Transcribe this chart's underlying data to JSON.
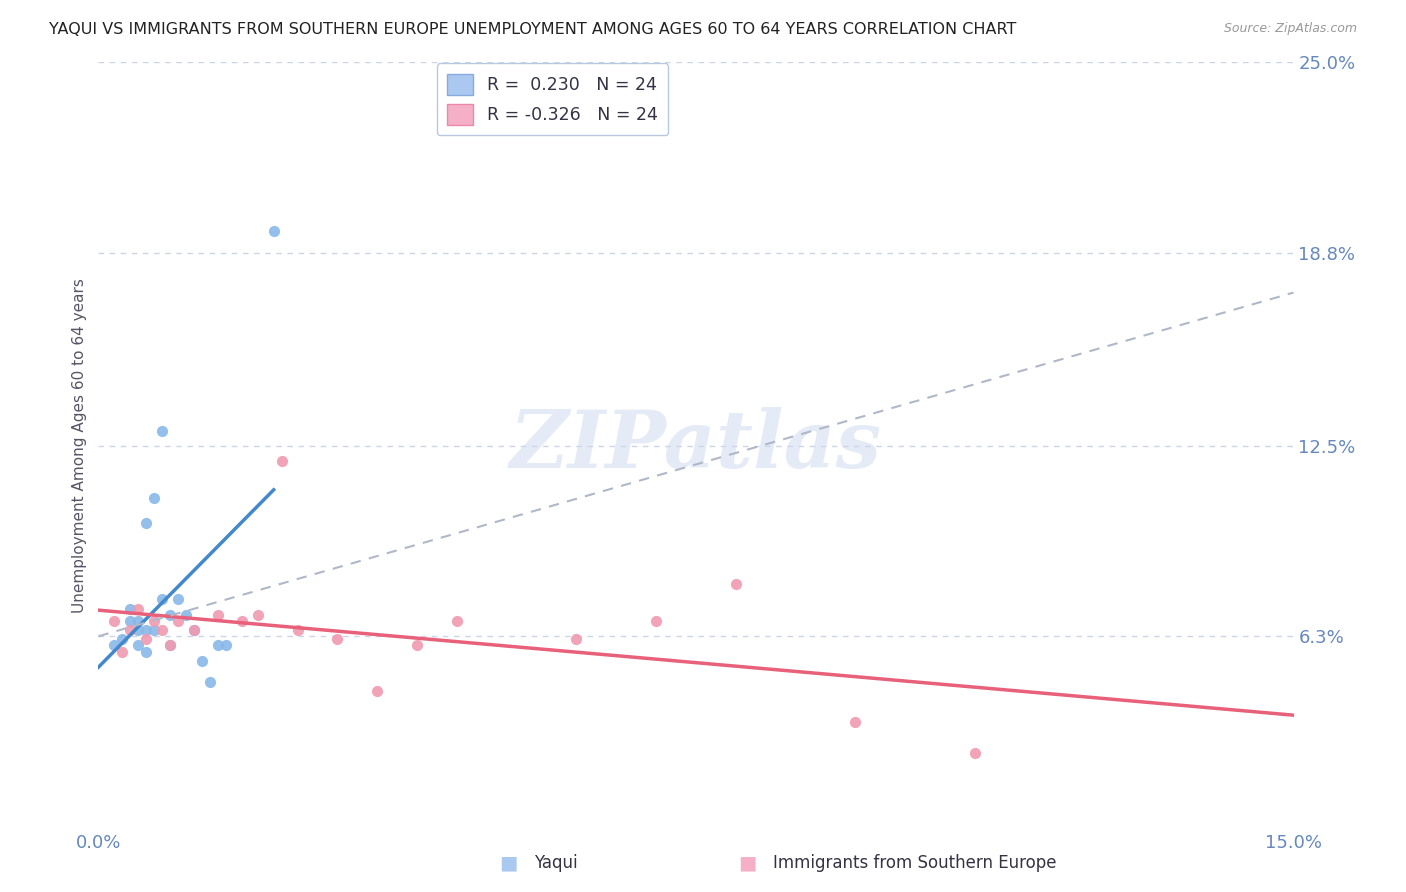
{
  "title": "YAQUI VS IMMIGRANTS FROM SOUTHERN EUROPE UNEMPLOYMENT AMONG AGES 60 TO 64 YEARS CORRELATION CHART",
  "source": "Source: ZipAtlas.com",
  "ylabel": "Unemployment Among Ages 60 to 64 years",
  "xlim": [
    0.0,
    0.15
  ],
  "ylim": [
    0.0,
    0.25
  ],
  "ytick_vals": [
    0.063,
    0.125,
    0.188,
    0.25
  ],
  "ytick_labels": [
    "6.3%",
    "12.5%",
    "18.8%",
    "25.0%"
  ],
  "watermark_text": "ZIPatlas",
  "series1_name": "Yaqui",
  "series2_name": "Immigrants from Southern Europe",
  "series1_color": "#88b8e8",
  "series2_color": "#f09ab0",
  "series1_line_color": "#4488cc",
  "series2_line_color": "#e8607a",
  "gray_line_color": "#b0b8c8",
  "legend_label1": "R =  0.230   N = 24",
  "legend_label2": "R = -0.326   N = 24",
  "legend_color1": "#aac8f0",
  "legend_color2": "#f5b0c8",
  "yaqui_x": [
    0.002,
    0.003,
    0.004,
    0.004,
    0.005,
    0.005,
    0.005,
    0.006,
    0.006,
    0.006,
    0.007,
    0.007,
    0.008,
    0.008,
    0.009,
    0.009,
    0.01,
    0.011,
    0.012,
    0.013,
    0.014,
    0.015,
    0.016,
    0.022
  ],
  "yaqui_y": [
    0.06,
    0.062,
    0.068,
    0.072,
    0.06,
    0.065,
    0.068,
    0.058,
    0.065,
    0.1,
    0.108,
    0.065,
    0.13,
    0.075,
    0.06,
    0.07,
    0.075,
    0.07,
    0.065,
    0.055,
    0.048,
    0.06,
    0.06,
    0.195
  ],
  "immigrants_x": [
    0.002,
    0.003,
    0.004,
    0.005,
    0.006,
    0.007,
    0.008,
    0.009,
    0.01,
    0.012,
    0.015,
    0.018,
    0.02,
    0.023,
    0.025,
    0.03,
    0.035,
    0.04,
    0.045,
    0.06,
    0.07,
    0.08,
    0.095,
    0.11
  ],
  "immigrants_y": [
    0.068,
    0.058,
    0.065,
    0.072,
    0.062,
    0.068,
    0.065,
    0.06,
    0.068,
    0.065,
    0.07,
    0.068,
    0.07,
    0.12,
    0.065,
    0.062,
    0.045,
    0.06,
    0.068,
    0.062,
    0.068,
    0.08,
    0.035,
    0.025
  ],
  "background_color": "#ffffff",
  "grid_color": "#ccd5e5",
  "title_color": "#222222",
  "axis_label_color": "#555566",
  "tick_label_color": "#6688bb",
  "title_fontsize": 11.5,
  "ylabel_fontsize": 11,
  "tick_fontsize": 13,
  "source_fontsize": 9
}
